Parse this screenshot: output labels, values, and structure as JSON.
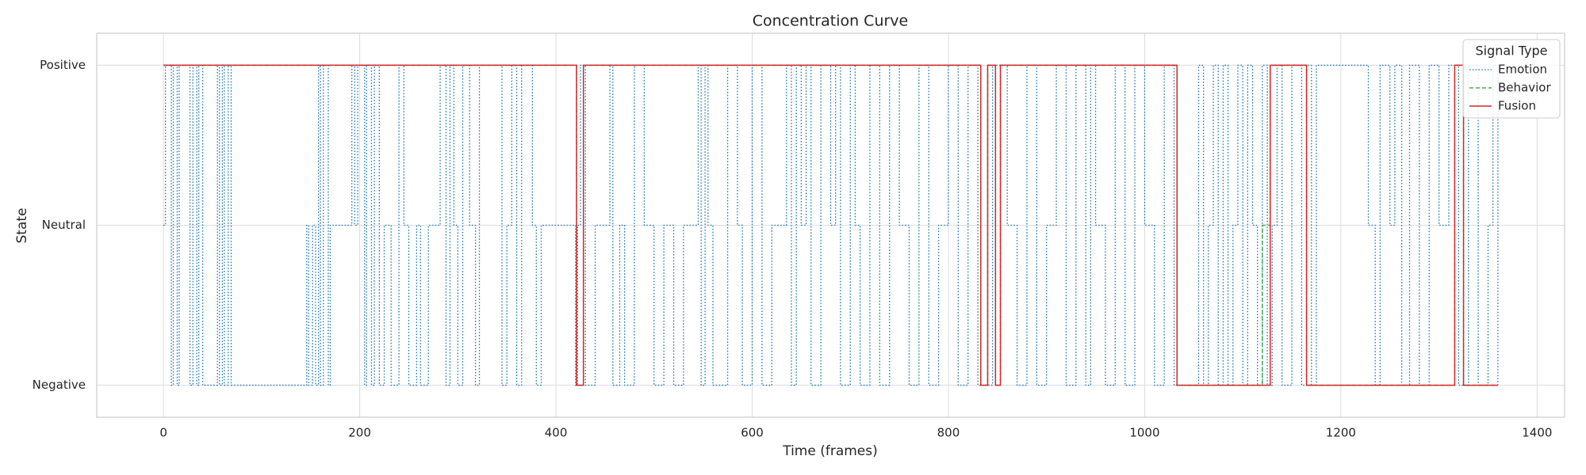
{
  "chart_data": {
    "type": "step",
    "title": "Concentration Curve",
    "x_label": "Time (frames)",
    "y_label": "State",
    "xlim": [
      -68,
      1428
    ],
    "ylim": [
      -0.2,
      2.2
    ],
    "xticks": [
      0,
      200,
      400,
      600,
      800,
      1000,
      1200,
      1400
    ],
    "yticks": [
      {
        "value": 0,
        "label": "Negative"
      },
      {
        "value": 1,
        "label": "Neutral"
      },
      {
        "value": 2,
        "label": "Positive"
      }
    ],
    "grid": true,
    "legend": {
      "title": "Signal Type",
      "position": "upper-right"
    },
    "series": [
      {
        "name": "Emotion",
        "color": "#1f77b4",
        "linestyle": "dotted",
        "x": [
          0,
          2,
          8,
          10,
          14,
          16,
          27,
          30,
          34,
          36,
          40,
          55,
          57,
          60,
          62,
          66,
          69,
          146,
          148,
          152,
          155,
          158,
          160,
          163,
          168,
          170,
          192,
          195,
          198,
          205,
          207,
          212,
          215,
          220,
          225,
          232,
          240,
          245,
          250,
          258,
          262,
          270,
          282,
          288,
          292,
          296,
          300,
          305,
          312,
          318,
          322,
          345,
          350,
          355,
          360,
          365,
          376,
          380,
          385,
          420,
          422,
          425,
          430,
          440,
          455,
          458,
          465,
          470,
          480,
          490,
          500,
          510,
          520,
          530,
          545,
          548,
          552,
          555,
          560,
          575,
          585,
          590,
          600,
          610,
          620,
          635,
          640,
          645,
          650,
          655,
          660,
          670,
          680,
          685,
          690,
          700,
          705,
          710,
          720,
          730,
          740,
          750,
          760,
          770,
          780,
          790,
          800,
          810,
          820,
          830,
          845,
          860,
          870,
          880,
          890,
          900,
          910,
          920,
          930,
          940,
          945,
          950,
          960,
          970,
          980,
          990,
          1000,
          1010,
          1020,
          1030,
          1055,
          1060,
          1065,
          1070,
          1075,
          1080,
          1085,
          1090,
          1095,
          1100,
          1105,
          1110,
          1115,
          1120,
          1125,
          1130,
          1135,
          1140,
          1150,
          1160,
          1165,
          1170,
          1175,
          1228,
          1235,
          1240,
          1250,
          1255,
          1262,
          1270,
          1280,
          1290,
          1300,
          1310,
          1320,
          1330,
          1340,
          1350,
          1355,
          1360
        ],
        "values": [
          1,
          2,
          0,
          2,
          0,
          2,
          0,
          2,
          0,
          2,
          0,
          2,
          0,
          2,
          0,
          2,
          0,
          1,
          0,
          1,
          0,
          2,
          0,
          2,
          0,
          1,
          2,
          1,
          2,
          0,
          2,
          0,
          2,
          0,
          1,
          0,
          2,
          1,
          0,
          1,
          0,
          1,
          2,
          0,
          2,
          1,
          0,
          2,
          1,
          0,
          2,
          0,
          1,
          2,
          0,
          2,
          1,
          0,
          1,
          0,
          1,
          2,
          0,
          1,
          2,
          0,
          1,
          0,
          2,
          1,
          0,
          1,
          0,
          1,
          2,
          0,
          2,
          1,
          0,
          2,
          1,
          0,
          2,
          0,
          1,
          2,
          0,
          2,
          1,
          2,
          0,
          2,
          1,
          2,
          0,
          2,
          1,
          0,
          2,
          0,
          2,
          1,
          0,
          2,
          0,
          1,
          2,
          0,
          2,
          0,
          2,
          1,
          0,
          2,
          0,
          1,
          2,
          0,
          2,
          0,
          2,
          1,
          0,
          2,
          0,
          2,
          1,
          0,
          2,
          0,
          2,
          0,
          1,
          2,
          0,
          2,
          0,
          1,
          2,
          0,
          2,
          1,
          0,
          2,
          0,
          1,
          2,
          0,
          2,
          0,
          2,
          0,
          2,
          1,
          0,
          2,
          1,
          2,
          0,
          2,
          0,
          2,
          1,
          2,
          0,
          2,
          0,
          1,
          2,
          0
        ]
      },
      {
        "name": "Behavior",
        "color": "#2ca02c",
        "linestyle": "dashed",
        "x": [
          0,
          421,
          428,
          833,
          840,
          848,
          853,
          1033,
          1120,
          1128,
          1165,
          1316,
          1325,
          1360
        ],
        "values": [
          2,
          0,
          2,
          0,
          2,
          0,
          2,
          0,
          1,
          2,
          0,
          2,
          0,
          0
        ]
      },
      {
        "name": "Fusion",
        "color": "#d62728",
        "linestyle": "solid",
        "x": [
          0,
          421,
          428,
          833,
          840,
          848,
          853,
          1033,
          1128,
          1165,
          1316,
          1325,
          1360
        ],
        "values": [
          2,
          0,
          2,
          0,
          2,
          0,
          2,
          0,
          2,
          0,
          2,
          0,
          0
        ]
      }
    ]
  }
}
